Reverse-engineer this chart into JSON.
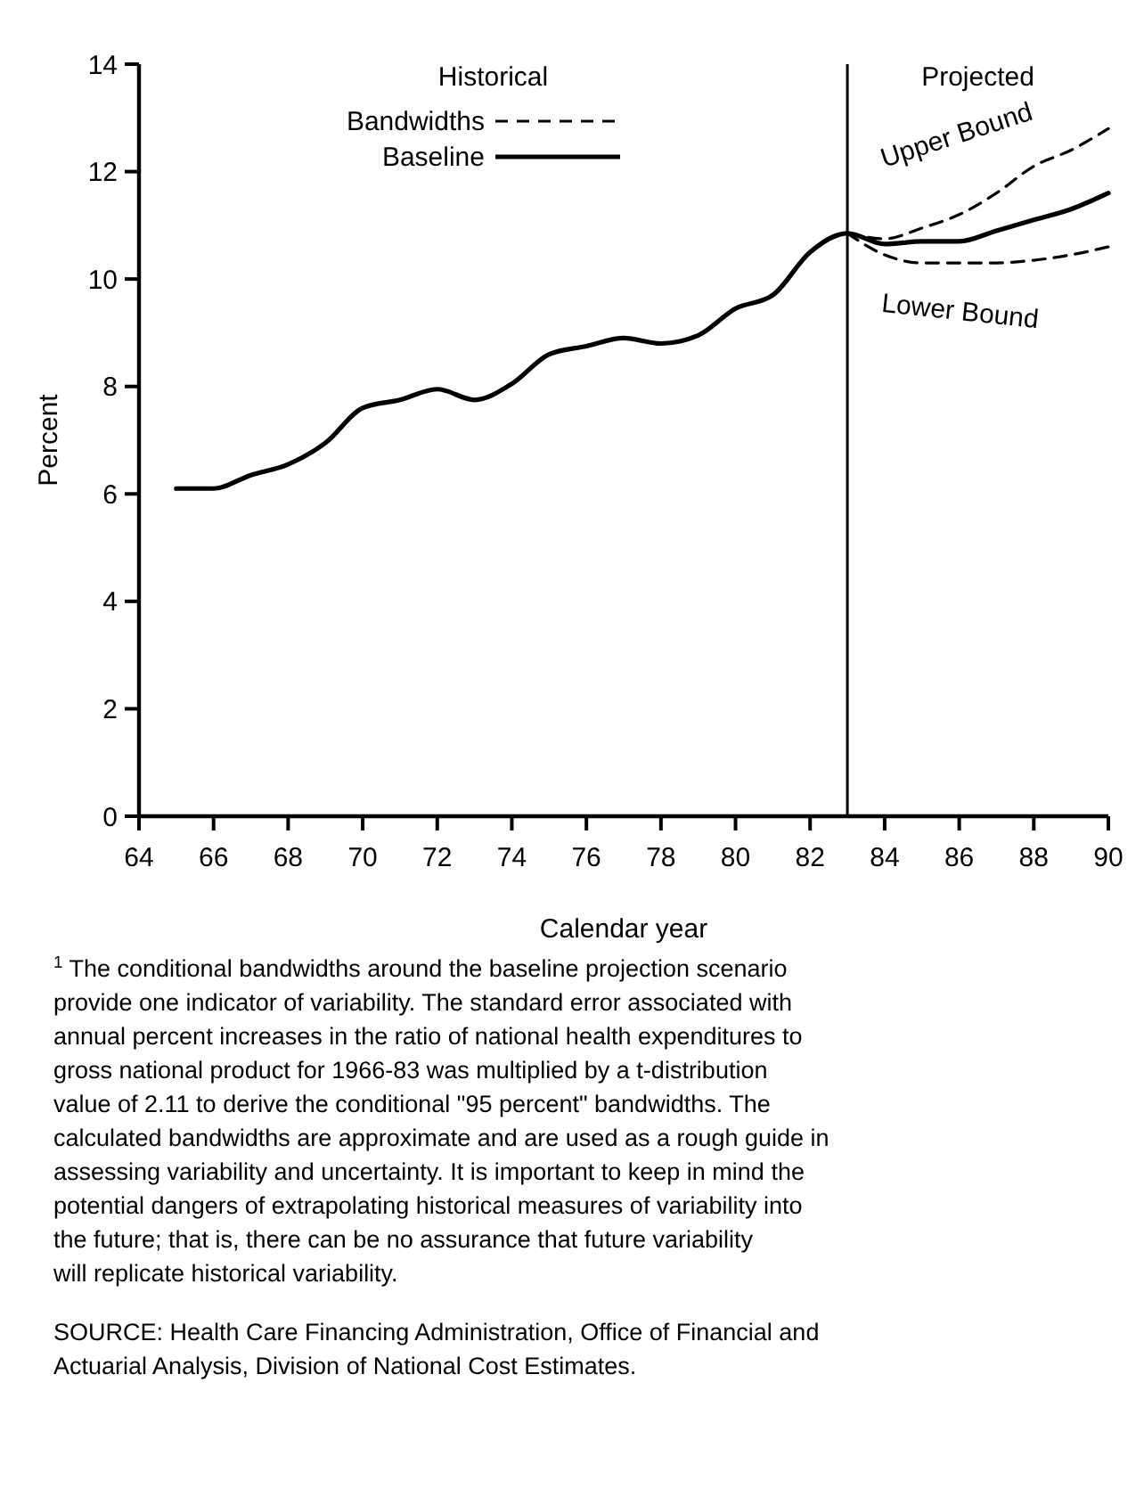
{
  "chart_data": {
    "type": "line",
    "xlabel": "Calendar year",
    "ylabel": "Percent",
    "xlim": [
      64,
      90
    ],
    "xticks": [
      64,
      66,
      68,
      70,
      72,
      74,
      76,
      78,
      80,
      82,
      84,
      86,
      88,
      90
    ],
    "ylim": [
      0,
      14
    ],
    "yticks": [
      0,
      2,
      4,
      6,
      8,
      10,
      12,
      14
    ],
    "grid": false,
    "legend": "top",
    "series": [
      {
        "name": "Baseline",
        "color": "#000000",
        "line_style": "solid",
        "x": [
          65,
          66,
          67,
          68,
          69,
          70,
          71,
          72,
          73,
          74,
          75,
          76,
          77,
          78,
          79,
          80,
          81,
          82,
          83,
          84,
          85,
          86,
          87,
          88,
          89,
          90
        ],
        "values": [
          6.1,
          6.1,
          6.35,
          6.55,
          6.95,
          7.6,
          7.75,
          7.95,
          7.75,
          8.05,
          8.6,
          8.75,
          8.9,
          8.8,
          8.95,
          9.45,
          9.7,
          10.5,
          10.85,
          10.65,
          10.7,
          10.7,
          10.9,
          11.1,
          11.3,
          11.6
        ]
      },
      {
        "name": "Upper Bound",
        "color": "#000000",
        "line_style": "dashed",
        "x": [
          83,
          84,
          85,
          86,
          87,
          88,
          89,
          90
        ],
        "values": [
          10.85,
          10.75,
          10.95,
          11.2,
          11.6,
          12.1,
          12.4,
          12.8
        ]
      },
      {
        "name": "Lower Bound",
        "color": "#000000",
        "line_style": "dashed",
        "x": [
          83,
          84,
          85,
          86,
          87,
          88,
          89,
          90
        ],
        "values": [
          10.85,
          10.45,
          10.3,
          10.3,
          10.3,
          10.35,
          10.45,
          10.6
        ]
      }
    ],
    "ref_lines": [
      {
        "axis": "x",
        "value": 83,
        "color": "#000000",
        "line_style": "solid"
      }
    ],
    "annotations": [
      "Historical",
      "Projected",
      "Bandwidths",
      "$^{1}$ The conditional bandwidths around the baseline projection scenario provide one indicator of variability. The standard error associated with annual percent increases in the ratio of national health expenditures to gross national product for 1966-83 was multiplied by a t-distribution value of 2.11 to derive the conditional \"95 percent\" bandwidths. The calculated bandwidths are approximate and are used as a rough guide in assessing variability and uncertainty. It is important to keep in mind the potential dangers of extrapolating historical measures of variability into the future; that is, there can be no assurance that future variability will replicate historical variability.",
      "SOURCE: Health Care Financing Administration, Office of Financial and Actuarial Analysis, Division of National Cost Estimates."
    ]
  }
}
